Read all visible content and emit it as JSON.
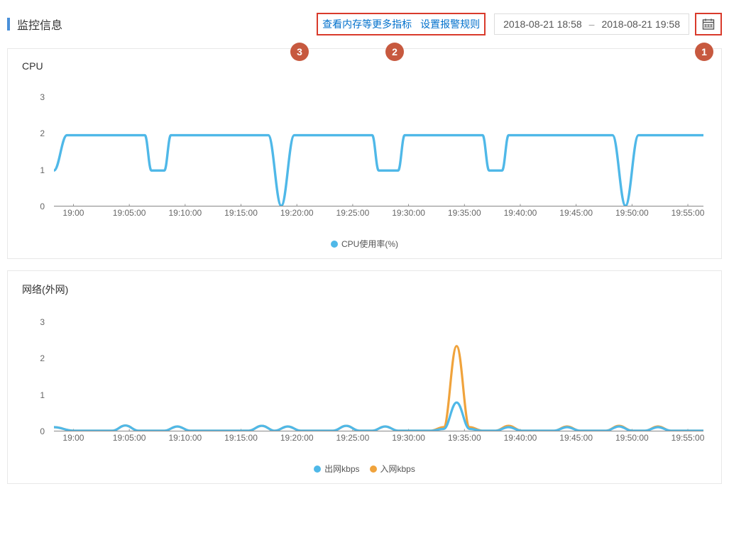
{
  "header": {
    "title": "监控信息",
    "link_more_metrics": "查看内存等更多指标",
    "link_alarm_rules": "设置报警规则",
    "date_from": "2018-08-21 18:58",
    "date_to": "2018-08-21 19:58",
    "date_separator": "–",
    "badges": {
      "b1": "1",
      "b2": "2",
      "b3": "3"
    },
    "accent_color": "#4a90d9",
    "highlight_border": "#d93a2b",
    "badge_bg": "#c7593f"
  },
  "cpu_chart": {
    "title": "CPU",
    "type": "line",
    "ylim": [
      0,
      3.5
    ],
    "yticks": [
      0,
      1,
      2,
      3
    ],
    "xticks": [
      "19:00",
      "19:05:00",
      "19:10:00",
      "19:15:00",
      "19:20:00",
      "19:25:00",
      "19:30:00",
      "19:35:00",
      "19:40:00",
      "19:45:00",
      "19:50:00",
      "19:55:00"
    ],
    "xtick_positions_pct": [
      3,
      11.6,
      20.2,
      28.8,
      37.4,
      46,
      54.6,
      63.2,
      71.8,
      80.4,
      89,
      97.6
    ],
    "series": [
      {
        "name": "CPU使用率(%)",
        "color": "#4fb8e8",
        "line_width": 1.7,
        "points": [
          [
            0,
            1
          ],
          [
            2,
            2
          ],
          [
            14,
            2
          ],
          [
            15,
            1
          ],
          [
            17,
            1
          ],
          [
            18,
            2
          ],
          [
            33,
            2
          ],
          [
            35,
            0
          ],
          [
            37,
            2
          ],
          [
            49,
            2
          ],
          [
            50,
            1
          ],
          [
            53,
            1
          ],
          [
            54,
            2
          ],
          [
            66,
            2
          ],
          [
            67,
            1
          ],
          [
            69,
            1
          ],
          [
            70,
            2
          ],
          [
            86,
            2
          ],
          [
            88,
            0
          ],
          [
            90,
            2
          ],
          [
            100,
            2
          ]
        ]
      }
    ],
    "legend": [
      {
        "label": "CPU使用率(%)",
        "color": "#4fb8e8"
      }
    ],
    "background_color": "#ffffff"
  },
  "net_chart": {
    "title": "网络(外网)",
    "type": "line",
    "ylim": [
      0,
      3.5
    ],
    "yticks": [
      0,
      1,
      2,
      3
    ],
    "xticks": [
      "19:00",
      "19:05:00",
      "19:10:00",
      "19:15:00",
      "19:20:00",
      "19:25:00",
      "19:30:00",
      "19:35:00",
      "19:40:00",
      "19:45:00",
      "19:50:00",
      "19:55:00"
    ],
    "xtick_positions_pct": [
      3,
      11.6,
      20.2,
      28.8,
      37.4,
      46,
      54.6,
      63.2,
      71.8,
      80.4,
      89,
      97.6
    ],
    "series": [
      {
        "name": "入网kbps",
        "color": "#f0a33c",
        "line_width": 1.6,
        "points": [
          [
            0,
            0.1
          ],
          [
            3,
            0
          ],
          [
            9,
            0
          ],
          [
            11,
            0.15
          ],
          [
            13,
            0
          ],
          [
            17,
            0
          ],
          [
            19,
            0.12
          ],
          [
            21,
            0
          ],
          [
            30,
            0
          ],
          [
            32,
            0.14
          ],
          [
            34,
            0
          ],
          [
            36,
            0.12
          ],
          [
            38,
            0
          ],
          [
            43,
            0
          ],
          [
            45,
            0.14
          ],
          [
            47,
            0
          ],
          [
            49,
            0
          ],
          [
            51,
            0.12
          ],
          [
            53,
            0
          ],
          [
            58,
            0
          ],
          [
            60,
            0.1
          ],
          [
            62,
            2.4
          ],
          [
            64,
            0.1
          ],
          [
            66,
            0
          ],
          [
            68,
            0
          ],
          [
            70,
            0.14
          ],
          [
            72,
            0
          ],
          [
            77,
            0
          ],
          [
            79,
            0.12
          ],
          [
            81,
            0
          ],
          [
            85,
            0
          ],
          [
            87,
            0.14
          ],
          [
            89,
            0
          ],
          [
            91,
            0
          ],
          [
            93,
            0.12
          ],
          [
            95,
            0
          ],
          [
            100,
            0
          ]
        ]
      },
      {
        "name": "出网kbps",
        "color": "#4fb8e8",
        "line_width": 1.6,
        "points": [
          [
            0,
            0.1
          ],
          [
            3,
            0
          ],
          [
            9,
            0
          ],
          [
            11,
            0.15
          ],
          [
            13,
            0
          ],
          [
            17,
            0
          ],
          [
            19,
            0.12
          ],
          [
            21,
            0
          ],
          [
            30,
            0
          ],
          [
            32,
            0.14
          ],
          [
            34,
            0
          ],
          [
            36,
            0.12
          ],
          [
            38,
            0
          ],
          [
            43,
            0
          ],
          [
            45,
            0.14
          ],
          [
            47,
            0
          ],
          [
            49,
            0
          ],
          [
            51,
            0.12
          ],
          [
            53,
            0
          ],
          [
            58,
            0
          ],
          [
            60,
            0.05
          ],
          [
            62,
            0.8
          ],
          [
            64,
            0.05
          ],
          [
            66,
            0
          ],
          [
            68,
            0
          ],
          [
            70,
            0.1
          ],
          [
            72,
            0
          ],
          [
            77,
            0
          ],
          [
            79,
            0.1
          ],
          [
            81,
            0
          ],
          [
            85,
            0
          ],
          [
            87,
            0.12
          ],
          [
            89,
            0
          ],
          [
            91,
            0
          ],
          [
            93,
            0.1
          ],
          [
            95,
            0
          ],
          [
            100,
            0
          ]
        ]
      }
    ],
    "legend": [
      {
        "label": "出网kbps",
        "color": "#4fb8e8"
      },
      {
        "label": "入网kbps",
        "color": "#f0a33c"
      }
    ],
    "background_color": "#ffffff"
  }
}
